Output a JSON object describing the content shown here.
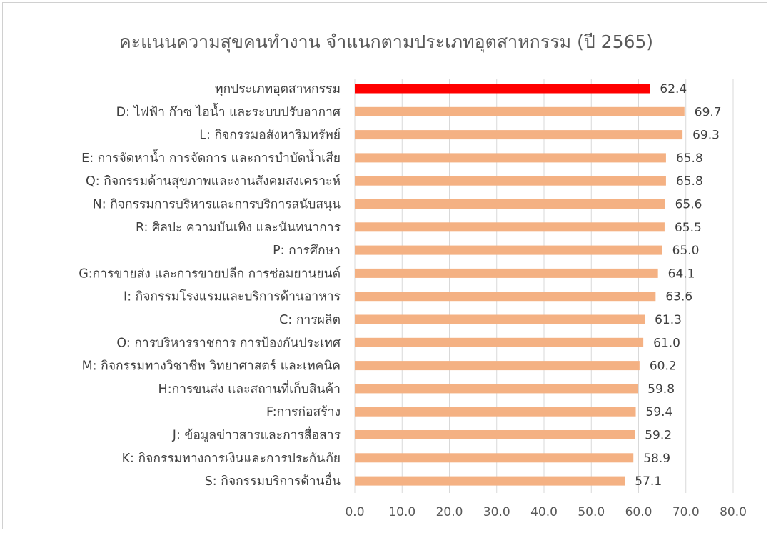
{
  "chart_data": {
    "type": "bar",
    "orientation": "horizontal",
    "title": "คะแนนความสุขคนทำงาน จำแนกตามประเภทอุตสาหกรรม (ปี 2565)",
    "xlabel": "",
    "ylabel": "",
    "xlim": [
      0,
      80
    ],
    "x_ticks": [
      "0.0",
      "10.0",
      "20.0",
      "30.0",
      "40.0",
      "50.0",
      "60.0",
      "70.0",
      "80.0"
    ],
    "grid": true,
    "legend": "none",
    "colors": {
      "highlight": "#ff0000",
      "default": "#f4b183"
    },
    "categories": [
      "ทุกประเภทอุตสาหกรรม",
      "D: ไฟฟ้า  ก๊าซ  ไอน้ำ และระบบปรับอากาศ",
      "L: กิจกรรมอสังหาริมทรัพย์",
      "E: การจัดหาน้ำ การจัดการ และการบำบัดน้ำเสีย",
      "Q: กิจกรรมด้านสุขภาพและงานสังคมสงเคราะห์",
      "N: กิจกรรมการบริหารและการบริการสนับสนุน",
      "R: ศิลปะ ความบันเทิง และนันทนาการ",
      "P: การศึกษา",
      "G:การขายส่ง  และการขายปลีก  การซ่อมยานยนต์",
      "I: กิจกรรมโรงแรมและบริการด้านอาหาร",
      "C: การผลิต",
      "O: การบริหารราชการ การป้องกันประเทศ",
      "M: กิจกรรมทางวิชาชีพ วิทยาศาสตร์ และเทคนิค",
      "H:การขนส่ง  และสถานที่เก็บสินค้า",
      "F:การก่อสร้าง",
      "J: ข้อมูลข่าวสารและการสื่อสาร",
      "K: กิจกรรมทางการเงินและการประกันภัย",
      "S: กิจกรรมบริการด้านอื่น"
    ],
    "values": [
      62.4,
      69.7,
      69.3,
      65.8,
      65.8,
      65.6,
      65.5,
      65.0,
      64.1,
      63.6,
      61.3,
      61.0,
      60.2,
      59.8,
      59.4,
      59.2,
      58.9,
      57.1
    ],
    "value_labels": [
      "62.4",
      "69.7",
      "69.3",
      "65.8",
      "65.8",
      "65.6",
      "65.5",
      "65.0",
      "64.1",
      "63.6",
      "61.3",
      "61.0",
      "60.2",
      "59.8",
      "59.4",
      "59.2",
      "58.9",
      "57.1"
    ],
    "highlight_index": 0
  }
}
